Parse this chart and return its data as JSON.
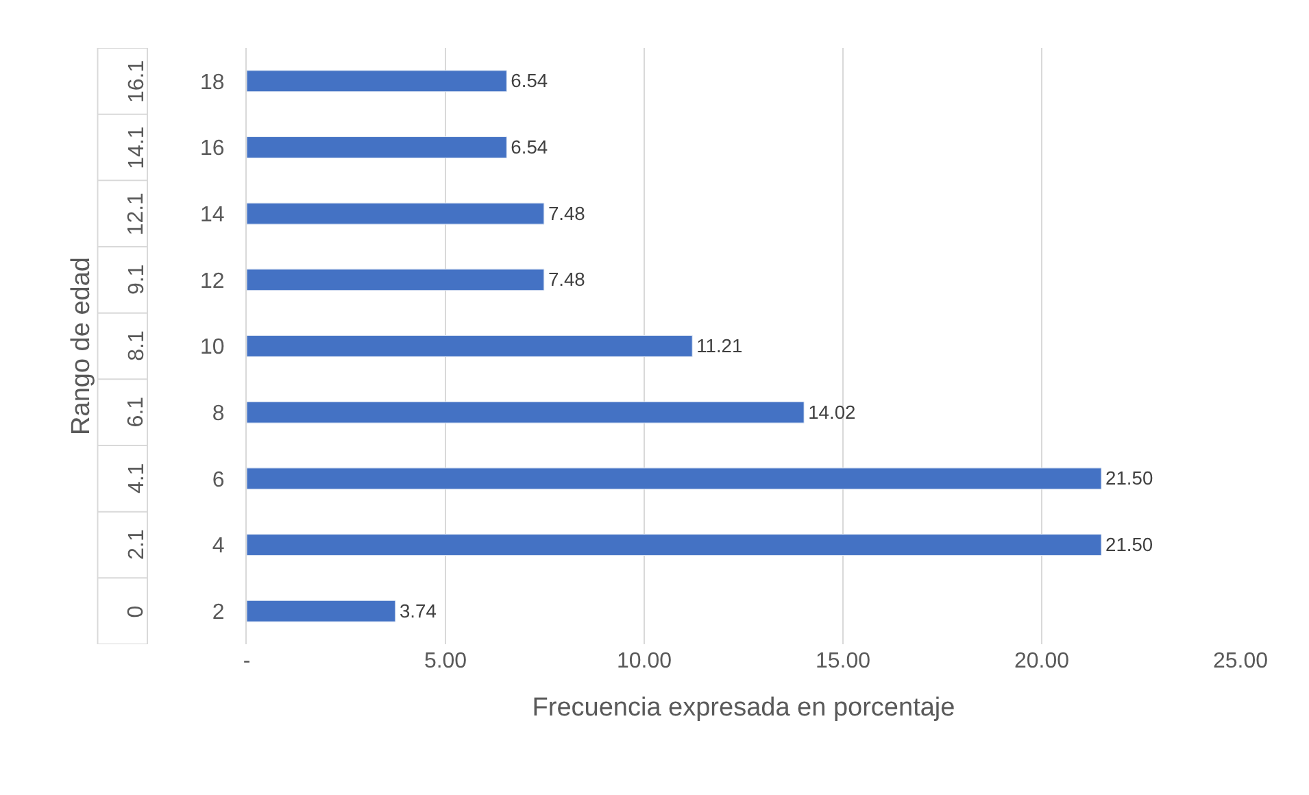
{
  "chart_data": {
    "type": "bar",
    "orientation": "horizontal",
    "xlabel": "Frecuencia expresada en porcentaje",
    "ylabel": "Rango de edad",
    "categories": [
      "18",
      "16",
      "14",
      "12",
      "10",
      "8",
      "6",
      "4",
      "2"
    ],
    "annotations": [
      "16.1",
      "14.1",
      "12.1",
      "9.1",
      "8.1",
      "6.1",
      "4.1",
      "2.1",
      "0"
    ],
    "values": [
      6.54,
      6.54,
      7.48,
      7.48,
      11.21,
      14.02,
      21.5,
      21.5,
      3.74
    ],
    "value_labels": [
      "6.54",
      "6.54",
      "7.48",
      "7.48",
      "11.21",
      "14.02",
      "21.50",
      "21.50",
      "3.74"
    ],
    "color": "#4472c4",
    "xlim": [
      0,
      25
    ],
    "xticks": [
      {
        "value": 0,
        "label": "-"
      },
      {
        "value": 5,
        "label": "5.00"
      },
      {
        "value": 10,
        "label": "10.00"
      },
      {
        "value": 15,
        "label": "15.00"
      },
      {
        "value": 20,
        "label": "20.00"
      },
      {
        "value": 25,
        "label": "25.00"
      }
    ],
    "grid": "x",
    "legend": false
  }
}
